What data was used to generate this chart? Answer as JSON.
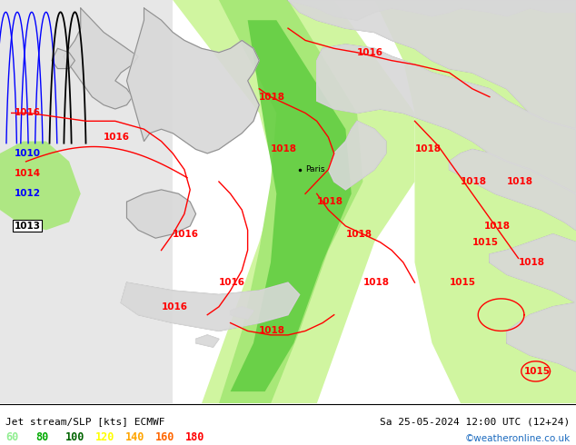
{
  "title_left": "Jet stream/SLP [kts] ECMWF",
  "title_right": "Sa 25-05-2024 12:00 UTC (12+24)",
  "credit": "©weatheronline.co.uk",
  "legend_values": [
    "60",
    "80",
    "100",
    "120",
    "140",
    "160",
    "180"
  ],
  "legend_colors": [
    "#90EE90",
    "#00AA00",
    "#006400",
    "#FFFF00",
    "#FFA500",
    "#FF6600",
    "#FF0000"
  ],
  "fig_width": 6.34,
  "fig_height": 4.9,
  "dpi": 100,
  "land_color": "#d8d8d8",
  "sea_color": "#e8e8e8",
  "light_green": "#c8f0a0",
  "medium_green": "#90e060",
  "dark_green": "#40c040",
  "coast_color": "#909090",
  "isobar_red": "#FF0000",
  "isobar_blue": "#0000FF",
  "isobar_black": "#000000"
}
